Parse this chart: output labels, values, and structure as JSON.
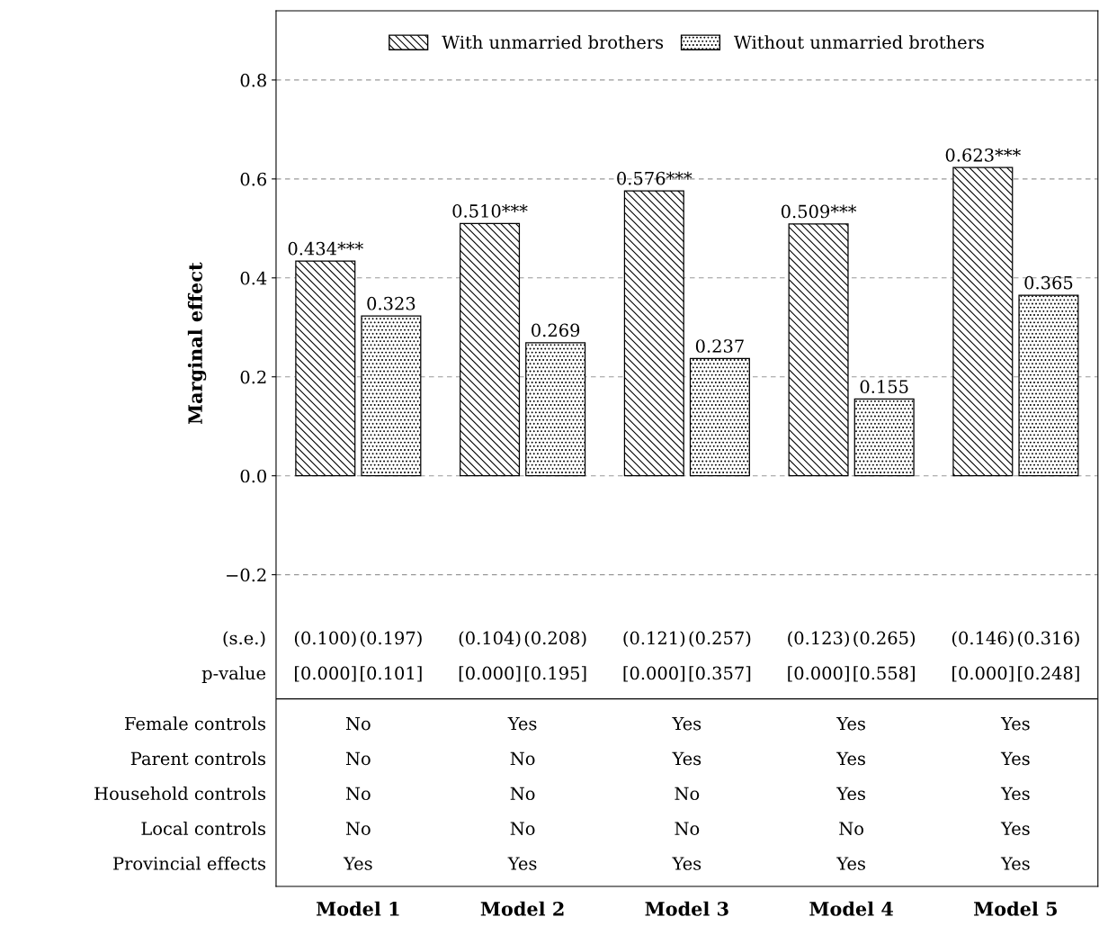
{
  "chart_data": {
    "type": "bar",
    "ylabel": "Marginal effect",
    "categories": [
      "Model 1",
      "Model 2",
      "Model 3",
      "Model 4",
      "Model 5"
    ],
    "series": [
      {
        "name": "With unmarried brothers",
        "color": "#000000",
        "values": [
          0.434,
          0.51,
          0.576,
          0.509,
          0.623
        ],
        "value_labels": [
          "0.434***",
          "0.510***",
          "0.576***",
          "0.509***",
          "0.623***"
        ]
      },
      {
        "name": "Without unmarried brothers",
        "color": "#000000",
        "values": [
          0.323,
          0.269,
          0.237,
          0.155,
          0.365
        ],
        "value_labels": [
          "0.323",
          "0.269",
          "0.237",
          "0.155",
          "0.365"
        ]
      }
    ],
    "ylim": [
      -0.83,
      0.94
    ],
    "yticks": [
      {
        "value": -0.2,
        "label": "−0.2"
      },
      {
        "value": 0.0,
        "label": "0.0"
      },
      {
        "value": 0.2,
        "label": "0.2"
      },
      {
        "value": 0.4,
        "label": "0.4"
      },
      {
        "value": 0.6,
        "label": "0.6"
      },
      {
        "value": 0.8,
        "label": "0.8"
      }
    ],
    "grid": "y",
    "legend": "top",
    "ref_lines": [
      {
        "axis": "y",
        "value": -0.451,
        "color": "#000000",
        "line_style": "solid"
      }
    ],
    "annotations": [
      "(s.e.)",
      "(0.100)",
      "(0.197)",
      "(0.104)",
      "(0.208)",
      "(0.121)",
      "(0.257)",
      "(0.123)",
      "(0.265)",
      "(0.146)",
      "(0.316)",
      "p-value",
      "[0.000]",
      "[0.101]",
      "[0.000]",
      "[0.195]",
      "[0.000]",
      "[0.357]",
      "[0.000]",
      "[0.558]",
      "[0.000]",
      "[0.248]",
      "Female controls",
      "No",
      "Yes",
      "Yes",
      "Yes",
      "Yes",
      "Parent controls",
      "No",
      "No",
      "Yes",
      "Yes",
      "Yes",
      "Household controls",
      "No",
      "No",
      "No",
      "Yes",
      "Yes",
      "Local controls",
      "No",
      "No",
      "No",
      "No",
      "Yes",
      "Provincial effects",
      "Yes",
      "Yes",
      "Yes",
      "Yes",
      "Yes"
    ]
  }
}
